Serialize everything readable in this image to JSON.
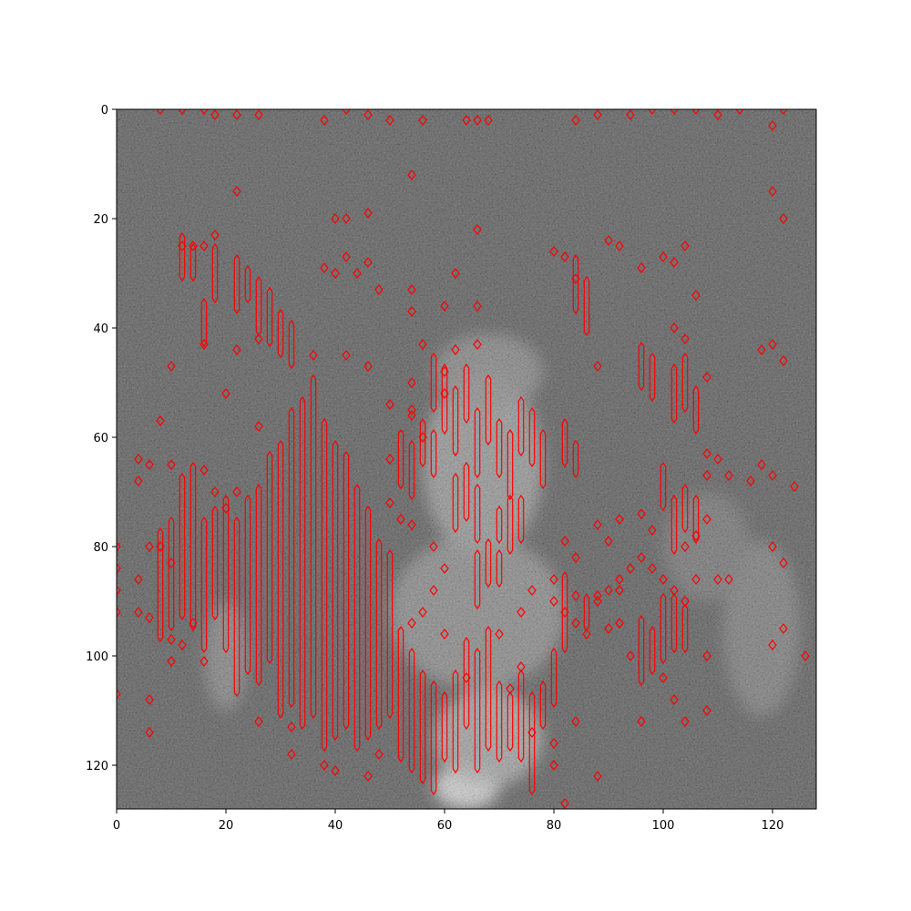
{
  "image": {
    "description_colors": {
      "background": "#1a1a1a",
      "bright": "#f2f2f2",
      "contour": "#ff0000",
      "axis": "#000000"
    },
    "pixel_grid": [
      128,
      128
    ]
  },
  "axes": {
    "xlim": [
      0,
      128
    ],
    "ylim": [
      128,
      0
    ],
    "x_ticks": [
      0,
      20,
      40,
      60,
      80,
      100,
      120
    ],
    "y_ticks": [
      0,
      20,
      40,
      60,
      80,
      100,
      120
    ]
  },
  "bright_regions": [
    {
      "cx": 64,
      "cy": 124,
      "rx": 6,
      "ry": 4,
      "level": 0.95
    },
    {
      "cx": 68,
      "cy": 115,
      "rx": 10,
      "ry": 9,
      "level": 0.55
    },
    {
      "cx": 67,
      "cy": 65,
      "rx": 11,
      "ry": 17,
      "level": 0.45
    },
    {
      "cx": 66,
      "cy": 92,
      "rx": 16,
      "ry": 14,
      "level": 0.35
    },
    {
      "cx": 68,
      "cy": 48,
      "rx": 10,
      "ry": 7,
      "level": 0.3
    },
    {
      "cx": 20,
      "cy": 100,
      "rx": 4,
      "ry": 10,
      "level": 0.28
    },
    {
      "cx": 118,
      "cy": 95,
      "rx": 7,
      "ry": 16,
      "level": 0.22
    },
    {
      "cx": 108,
      "cy": 80,
      "rx": 8,
      "ry": 10,
      "level": 0.15
    }
  ],
  "contour_columns": [
    [
      8,
      78,
      96
    ],
    [
      10,
      76,
      94
    ],
    [
      12,
      68,
      92
    ],
    [
      14,
      66,
      94
    ],
    [
      16,
      76,
      98
    ],
    [
      18,
      74,
      92
    ],
    [
      20,
      72,
      98
    ],
    [
      22,
      76,
      106
    ],
    [
      24,
      72,
      102
    ],
    [
      26,
      70,
      104
    ],
    [
      28,
      64,
      100
    ],
    [
      30,
      62,
      110
    ],
    [
      32,
      56,
      108
    ],
    [
      34,
      54,
      112
    ],
    [
      36,
      50,
      110
    ],
    [
      38,
      58,
      116
    ],
    [
      40,
      62,
      114
    ],
    [
      42,
      64,
      112
    ],
    [
      44,
      70,
      116
    ],
    [
      46,
      74,
      114
    ],
    [
      48,
      80,
      112
    ],
    [
      50,
      82,
      110
    ],
    [
      52,
      96,
      118
    ],
    [
      54,
      100,
      120
    ],
    [
      56,
      104,
      122
    ],
    [
      58,
      106,
      124
    ],
    [
      60,
      108,
      118
    ],
    [
      62,
      104,
      120
    ],
    [
      64,
      98,
      112
    ],
    [
      66,
      100,
      120
    ],
    [
      68,
      96,
      116
    ],
    [
      70,
      106,
      118
    ],
    [
      72,
      108,
      116
    ],
    [
      74,
      104,
      118
    ],
    [
      76,
      108,
      124
    ],
    [
      78,
      106,
      112
    ],
    [
      80,
      100,
      108
    ],
    [
      82,
      86,
      98
    ],
    [
      86,
      90,
      94
    ],
    [
      96,
      94,
      104
    ],
    [
      98,
      96,
      102
    ],
    [
      100,
      90,
      100
    ],
    [
      102,
      90,
      98
    ],
    [
      104,
      92,
      98
    ],
    [
      22,
      28,
      36
    ],
    [
      24,
      30,
      34
    ],
    [
      26,
      32,
      40
    ],
    [
      28,
      34,
      42
    ],
    [
      30,
      38,
      44
    ],
    [
      32,
      40,
      46
    ],
    [
      16,
      36,
      42
    ],
    [
      18,
      26,
      34
    ],
    [
      58,
      46,
      54
    ],
    [
      60,
      48,
      58
    ],
    [
      62,
      52,
      62
    ],
    [
      64,
      48,
      56
    ],
    [
      66,
      56,
      66
    ],
    [
      68,
      50,
      60
    ],
    [
      70,
      58,
      66
    ],
    [
      72,
      60,
      70
    ],
    [
      74,
      54,
      62
    ],
    [
      76,
      56,
      64
    ],
    [
      78,
      60,
      68
    ],
    [
      62,
      68,
      76
    ],
    [
      64,
      66,
      74
    ],
    [
      66,
      70,
      78
    ],
    [
      70,
      74,
      78
    ],
    [
      72,
      72,
      80
    ],
    [
      74,
      72,
      78
    ],
    [
      66,
      82,
      90
    ],
    [
      68,
      80,
      86
    ],
    [
      70,
      82,
      86
    ],
    [
      100,
      66,
      72
    ],
    [
      102,
      72,
      80
    ],
    [
      104,
      70,
      76
    ],
    [
      106,
      72,
      78
    ],
    [
      84,
      28,
      36
    ],
    [
      86,
      32,
      40
    ],
    [
      96,
      44,
      50
    ],
    [
      98,
      46,
      52
    ],
    [
      102,
      48,
      56
    ],
    [
      104,
      46,
      54
    ],
    [
      106,
      52,
      58
    ],
    [
      12,
      24,
      30
    ],
    [
      14,
      26,
      30
    ],
    [
      82,
      58,
      64
    ],
    [
      84,
      62,
      66
    ],
    [
      56,
      58,
      64
    ],
    [
      58,
      60,
      66
    ],
    [
      52,
      60,
      68
    ],
    [
      54,
      62,
      70
    ]
  ],
  "contour_dots": [
    [
      8,
      0
    ],
    [
      12,
      0
    ],
    [
      16,
      0
    ],
    [
      18,
      1
    ],
    [
      22,
      1
    ],
    [
      26,
      1
    ],
    [
      38,
      2
    ],
    [
      42,
      0
    ],
    [
      46,
      1
    ],
    [
      50,
      2
    ],
    [
      56,
      2
    ],
    [
      64,
      2
    ],
    [
      66,
      2
    ],
    [
      68,
      2
    ],
    [
      84,
      2
    ],
    [
      88,
      1
    ],
    [
      94,
      1
    ],
    [
      98,
      0
    ],
    [
      102,
      0
    ],
    [
      106,
      0
    ],
    [
      110,
      1
    ],
    [
      114,
      0
    ],
    [
      120,
      3
    ],
    [
      122,
      0
    ],
    [
      54,
      12
    ],
    [
      22,
      15
    ],
    [
      120,
      15
    ],
    [
      122,
      20
    ],
    [
      66,
      22
    ],
    [
      40,
      20
    ],
    [
      42,
      20
    ],
    [
      46,
      19
    ],
    [
      18,
      23
    ],
    [
      12,
      25
    ],
    [
      14,
      25
    ],
    [
      16,
      25
    ],
    [
      80,
      26
    ],
    [
      82,
      27
    ],
    [
      84,
      31
    ],
    [
      90,
      24
    ],
    [
      92,
      25
    ],
    [
      96,
      29
    ],
    [
      100,
      27
    ],
    [
      102,
      28
    ],
    [
      104,
      25
    ],
    [
      38,
      29
    ],
    [
      40,
      30
    ],
    [
      42,
      27
    ],
    [
      44,
      30
    ],
    [
      46,
      28
    ],
    [
      48,
      33
    ],
    [
      54,
      33
    ],
    [
      60,
      36
    ],
    [
      66,
      36
    ],
    [
      54,
      37
    ],
    [
      106,
      34
    ],
    [
      10,
      47
    ],
    [
      16,
      43
    ],
    [
      22,
      44
    ],
    [
      26,
      42
    ],
    [
      36,
      45
    ],
    [
      42,
      45
    ],
    [
      46,
      47
    ],
    [
      50,
      54
    ],
    [
      54,
      56
    ],
    [
      66,
      43
    ],
    [
      88,
      47
    ],
    [
      102,
      40
    ],
    [
      104,
      42
    ],
    [
      108,
      49
    ],
    [
      118,
      44
    ],
    [
      120,
      43
    ],
    [
      122,
      46
    ],
    [
      20,
      52
    ],
    [
      26,
      58
    ],
    [
      8,
      57
    ],
    [
      4,
      64
    ],
    [
      6,
      65
    ],
    [
      4,
      68
    ],
    [
      10,
      65
    ],
    [
      16,
      66
    ],
    [
      18,
      70
    ],
    [
      22,
      70
    ],
    [
      20,
      73
    ],
    [
      4,
      86
    ],
    [
      6,
      80
    ],
    [
      8,
      80
    ],
    [
      10,
      83
    ],
    [
      6,
      93
    ],
    [
      12,
      98
    ],
    [
      16,
      101
    ],
    [
      4,
      92
    ],
    [
      0,
      84
    ],
    [
      0,
      88
    ],
    [
      0,
      92
    ],
    [
      0,
      80
    ],
    [
      0,
      107
    ],
    [
      6,
      108
    ],
    [
      6,
      114
    ],
    [
      10,
      97
    ],
    [
      10,
      101
    ],
    [
      14,
      94
    ],
    [
      26,
      112
    ],
    [
      32,
      113
    ],
    [
      32,
      118
    ],
    [
      38,
      120
    ],
    [
      40,
      121
    ],
    [
      46,
      122
    ],
    [
      48,
      118
    ],
    [
      76,
      114
    ],
    [
      80,
      116
    ],
    [
      80,
      120
    ],
    [
      82,
      127
    ],
    [
      88,
      122
    ],
    [
      84,
      112
    ],
    [
      86,
      96
    ],
    [
      92,
      94
    ],
    [
      94,
      100
    ],
    [
      100,
      104
    ],
    [
      102,
      108
    ],
    [
      104,
      112
    ],
    [
      96,
      112
    ],
    [
      108,
      100
    ],
    [
      108,
      110
    ],
    [
      120,
      98
    ],
    [
      122,
      95
    ],
    [
      126,
      100
    ],
    [
      108,
      67
    ],
    [
      112,
      67
    ],
    [
      118,
      65
    ],
    [
      120,
      67
    ],
    [
      124,
      69
    ],
    [
      116,
      68
    ],
    [
      110,
      64
    ],
    [
      108,
      63
    ],
    [
      112,
      86
    ],
    [
      110,
      86
    ],
    [
      122,
      83
    ],
    [
      120,
      80
    ],
    [
      88,
      76
    ],
    [
      90,
      79
    ],
    [
      82,
      79
    ],
    [
      84,
      82
    ],
    [
      92,
      75
    ],
    [
      96,
      74
    ],
    [
      98,
      77
    ],
    [
      104,
      80
    ],
    [
      106,
      78
    ],
    [
      108,
      75
    ],
    [
      80,
      86
    ],
    [
      84,
      89
    ],
    [
      92,
      88
    ],
    [
      92,
      94
    ],
    [
      88,
      89
    ],
    [
      90,
      95
    ],
    [
      62,
      30
    ],
    [
      56,
      43
    ],
    [
      60,
      48
    ],
    [
      62,
      44
    ],
    [
      60,
      52
    ],
    [
      54,
      50
    ],
    [
      54,
      55
    ],
    [
      56,
      60
    ],
    [
      50,
      64
    ],
    [
      50,
      72
    ],
    [
      52,
      75
    ],
    [
      54,
      76
    ],
    [
      58,
      80
    ],
    [
      60,
      84
    ],
    [
      58,
      88
    ],
    [
      56,
      92
    ],
    [
      54,
      94
    ],
    [
      60,
      96
    ],
    [
      64,
      104
    ],
    [
      72,
      106
    ],
    [
      74,
      102
    ],
    [
      70,
      96
    ],
    [
      74,
      92
    ],
    [
      76,
      88
    ],
    [
      80,
      90
    ],
    [
      82,
      92
    ],
    [
      84,
      94
    ],
    [
      88,
      90
    ],
    [
      90,
      88
    ],
    [
      92,
      86
    ],
    [
      94,
      84
    ],
    [
      96,
      82
    ],
    [
      98,
      84
    ],
    [
      100,
      86
    ],
    [
      102,
      88
    ],
    [
      104,
      90
    ],
    [
      106,
      86
    ]
  ]
}
